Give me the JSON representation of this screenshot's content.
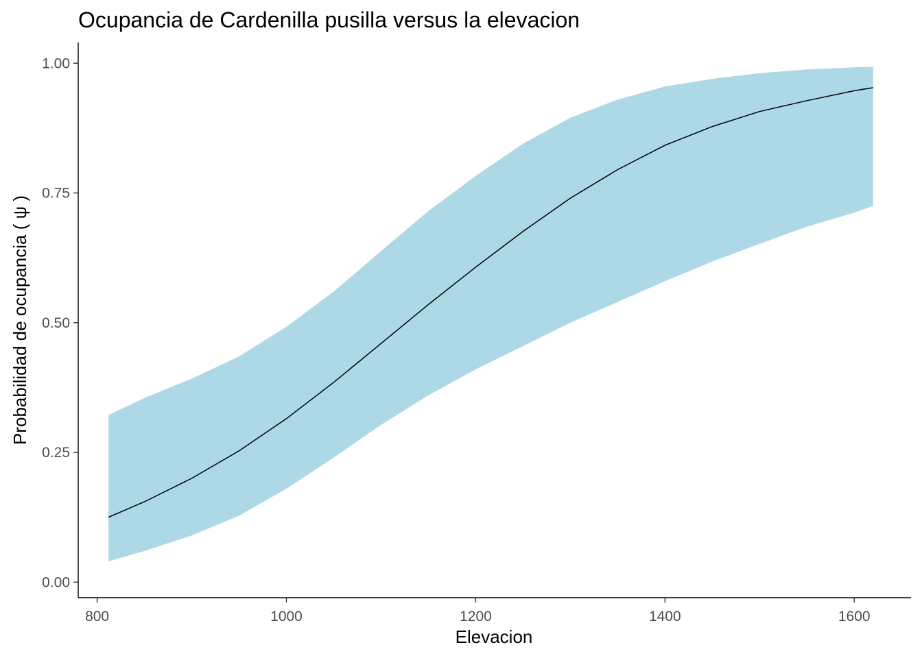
{
  "chart_data": {
    "type": "area",
    "title": "Ocupancia de Cardenilla pusilla versus la elevacion",
    "xlabel": "Elevacion",
    "ylabel": "Probabilidad de ocupancia ( ψ )",
    "xlim": [
      780,
      1660
    ],
    "ylim": [
      -0.03,
      1.04
    ],
    "x_ticks": [
      800,
      1000,
      1200,
      1400,
      1600
    ],
    "y_ticks": [
      0.0,
      0.25,
      0.5,
      0.75,
      1.0
    ],
    "x_tick_labels": [
      "800",
      "1000",
      "1200",
      "1400",
      "1600"
    ],
    "y_tick_labels": [
      "0.00",
      "0.25",
      "0.50",
      "0.75",
      "1.00"
    ],
    "grid": false,
    "legend": "none",
    "colors": {
      "ribbon": "#add8e6",
      "line": "#000000"
    },
    "series": [
      {
        "role": "estimate",
        "x": [
          812,
          850,
          900,
          950,
          1000,
          1050,
          1100,
          1150,
          1200,
          1250,
          1300,
          1350,
          1400,
          1450,
          1500,
          1550,
          1600,
          1620
        ],
        "values": [
          0.125,
          0.155,
          0.2,
          0.253,
          0.315,
          0.385,
          0.46,
          0.535,
          0.607,
          0.676,
          0.74,
          0.795,
          0.842,
          0.878,
          0.907,
          0.928,
          0.947,
          0.953
        ]
      },
      {
        "role": "upper",
        "x": [
          812,
          850,
          900,
          950,
          1000,
          1050,
          1100,
          1150,
          1200,
          1250,
          1300,
          1350,
          1400,
          1450,
          1500,
          1550,
          1600,
          1620
        ],
        "values": [
          0.322,
          0.355,
          0.392,
          0.435,
          0.492,
          0.56,
          0.638,
          0.715,
          0.783,
          0.845,
          0.895,
          0.93,
          0.955,
          0.97,
          0.981,
          0.988,
          0.992,
          0.993
        ]
      },
      {
        "role": "lower",
        "x": [
          812,
          850,
          900,
          950,
          1000,
          1050,
          1100,
          1150,
          1200,
          1250,
          1300,
          1350,
          1400,
          1450,
          1500,
          1550,
          1600,
          1620
        ],
        "values": [
          0.04,
          0.06,
          0.09,
          0.128,
          0.18,
          0.24,
          0.303,
          0.36,
          0.41,
          0.455,
          0.5,
          0.54,
          0.58,
          0.618,
          0.652,
          0.685,
          0.712,
          0.725
        ]
      }
    ]
  }
}
